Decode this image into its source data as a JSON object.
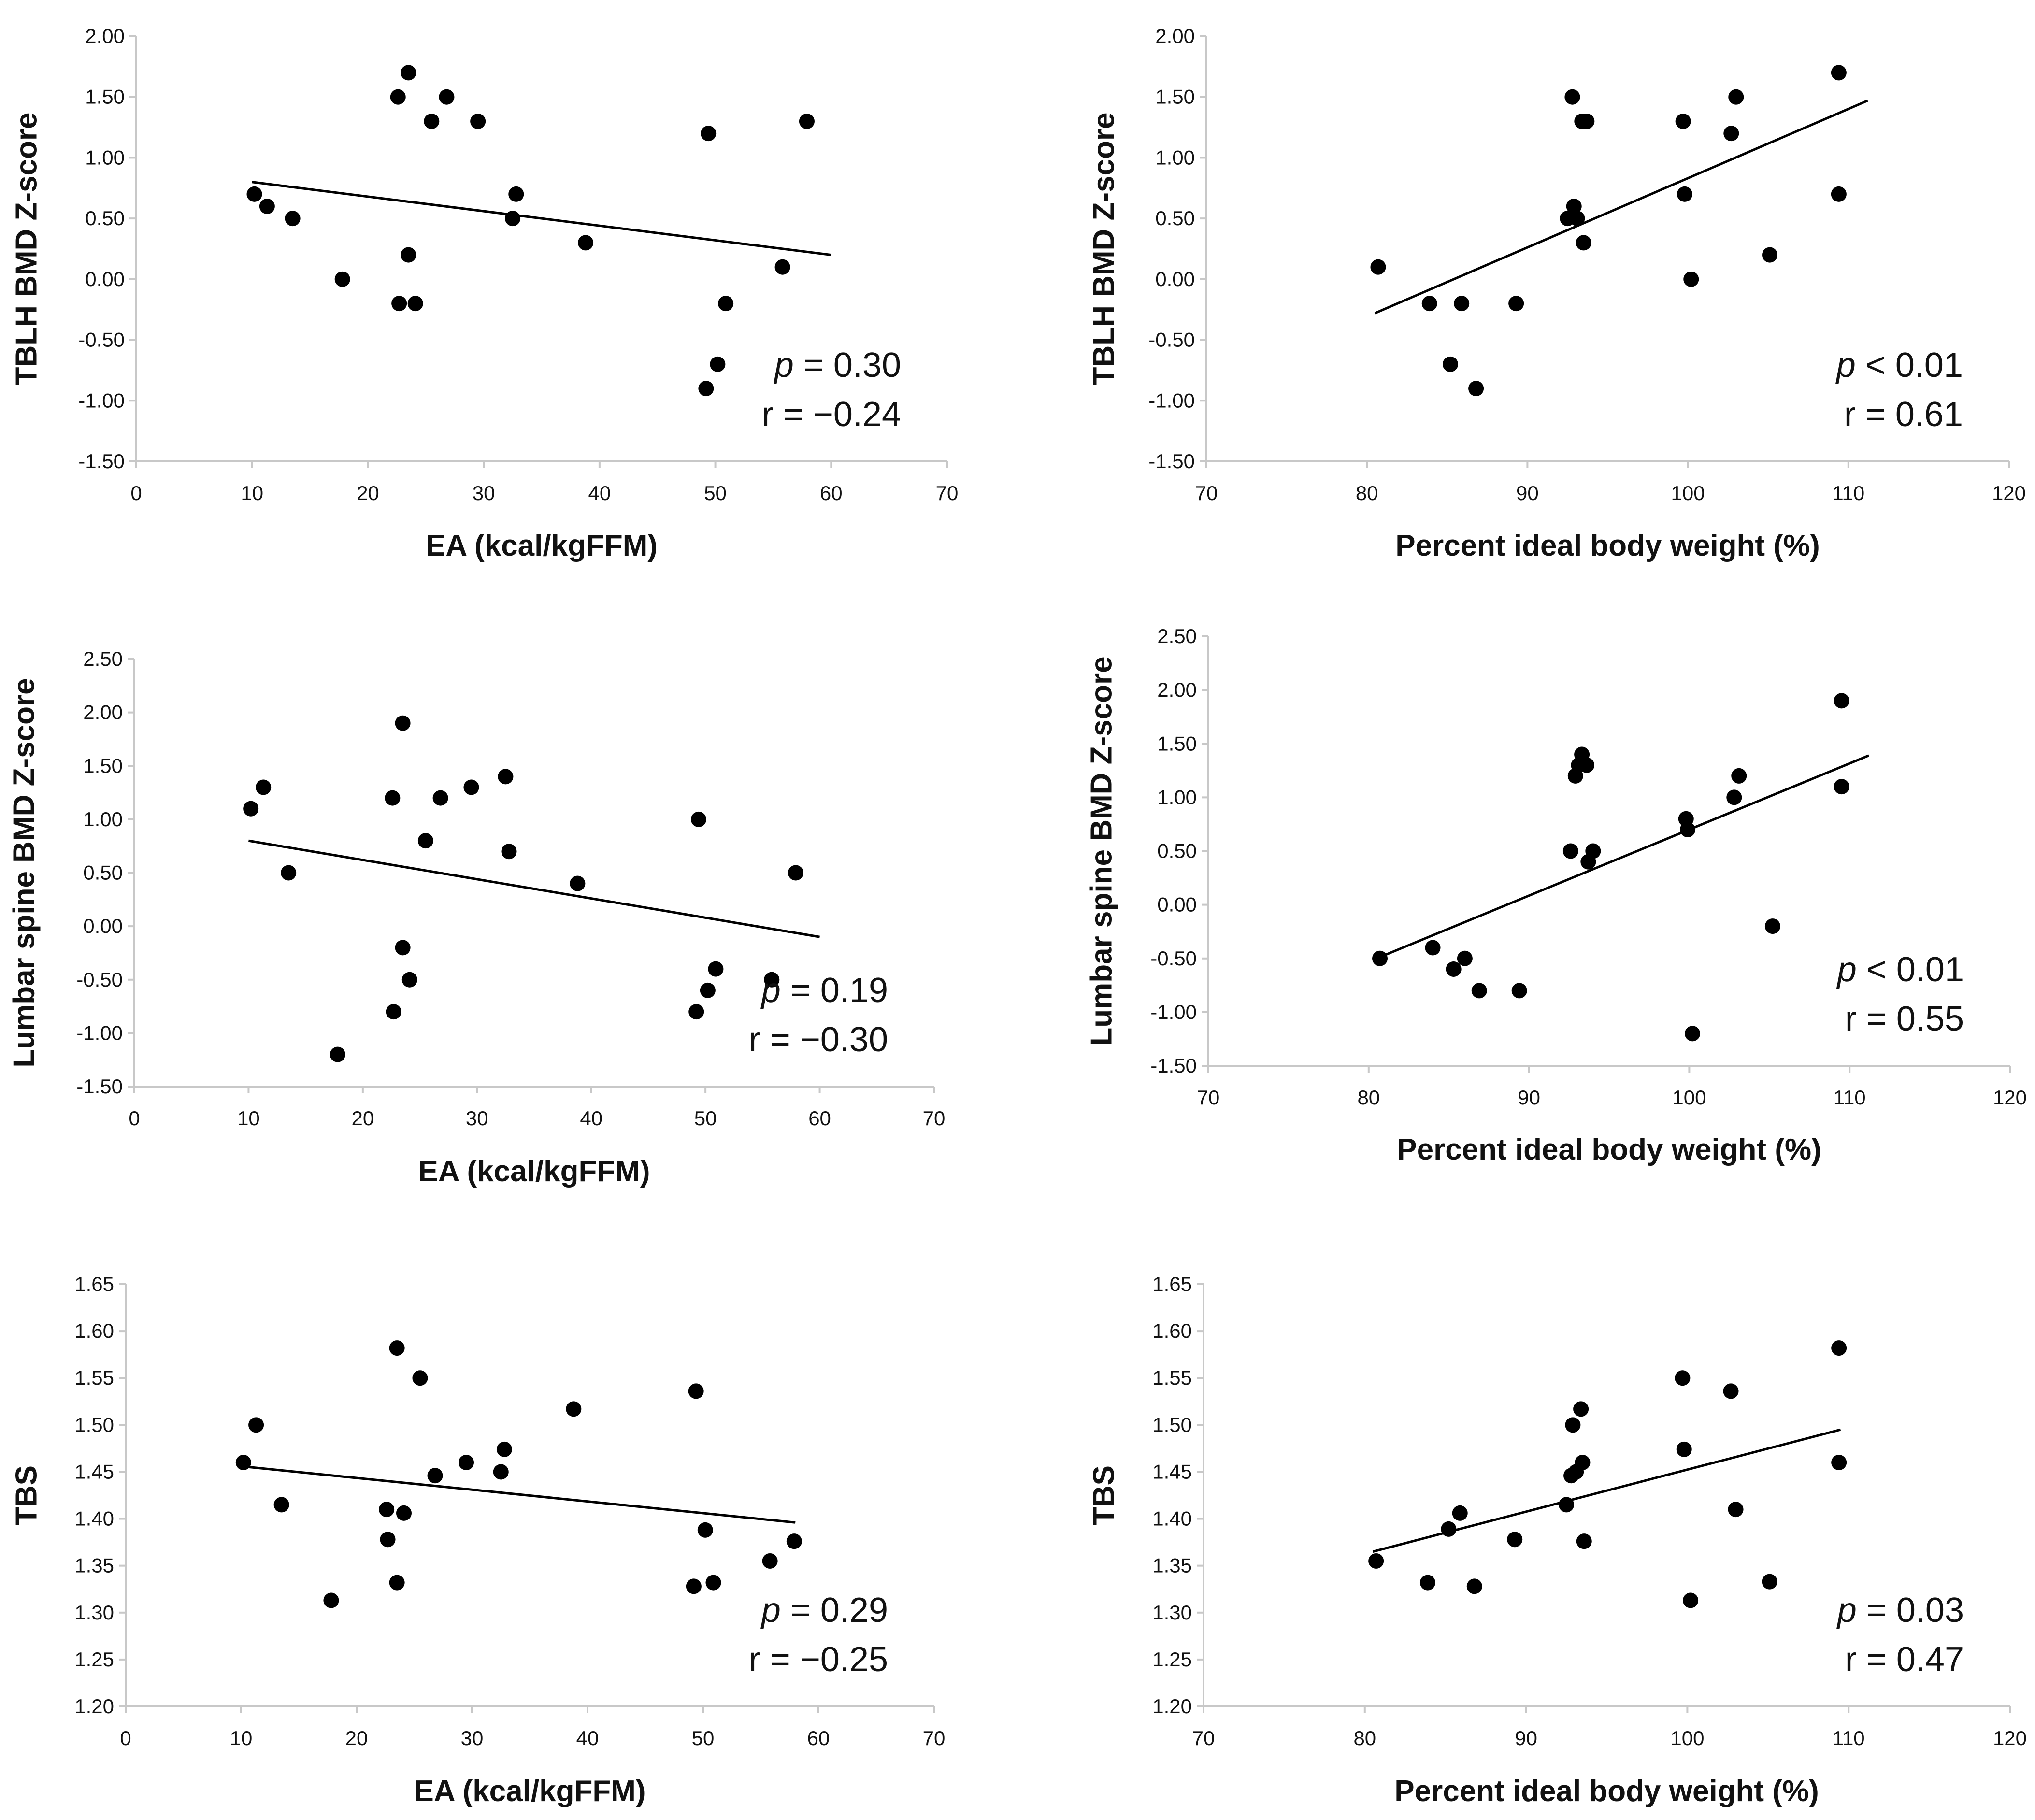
{
  "colors": {
    "axis": "#c8c8c8",
    "marker": "#000000",
    "trendline": "#000000",
    "text": "#111111"
  },
  "chart_data": [
    {
      "type": "scatter",
      "panel": "top-left",
      "title": "",
      "xlabel": "EA (kcal/kgFFM)",
      "ylabel": "TBLH BMD Z-score",
      "xlim": [
        0,
        70
      ],
      "ylim": [
        -1.5,
        2.0
      ],
      "xticks": [
        0,
        10,
        20,
        30,
        40,
        50,
        60,
        70
      ],
      "xtick_labels": [
        "0",
        "10",
        "20",
        "30",
        "40",
        "50",
        "60",
        "70"
      ],
      "yticks": [
        2.0,
        1.5,
        1.0,
        0.5,
        0.0,
        -0.5,
        -1.0,
        -1.5
      ],
      "ytick_labels": [
        "2.00",
        "1.50",
        "1.00",
        "0.50",
        "0.00",
        "-0.50",
        "-1.00",
        "-1.50"
      ],
      "points": [
        [
          10.2,
          0.7
        ],
        [
          11.3,
          0.6
        ],
        [
          13.5,
          0.5
        ],
        [
          17.8,
          0.0
        ],
        [
          22.6,
          1.5
        ],
        [
          22.7,
          -0.2
        ],
        [
          23.5,
          1.7
        ],
        [
          23.5,
          0.2
        ],
        [
          24.1,
          -0.2
        ],
        [
          25.5,
          1.3
        ],
        [
          26.8,
          1.5
        ],
        [
          29.5,
          1.3
        ],
        [
          32.5,
          0.5
        ],
        [
          32.8,
          0.7
        ],
        [
          38.8,
          0.3
        ],
        [
          49.2,
          -0.9
        ],
        [
          49.4,
          1.2
        ],
        [
          50.2,
          -0.7
        ],
        [
          50.9,
          -0.2
        ],
        [
          55.8,
          0.1
        ],
        [
          57.9,
          1.3
        ]
      ],
      "trendline": {
        "x": [
          10,
          60
        ],
        "y": [
          0.8,
          0.2
        ]
      },
      "annotation": {
        "p_symbol": "p",
        "p_text": " =  0.30",
        "r_text": "r = −0.24"
      }
    },
    {
      "type": "scatter",
      "panel": "top-right",
      "title": "",
      "xlabel": "Percent ideal body weight (%)",
      "ylabel": "TBLH BMD Z-score",
      "xlim": [
        70,
        120
      ],
      "ylim": [
        -1.5,
        2.0
      ],
      "xticks": [
        70,
        80,
        90,
        100,
        110,
        120
      ],
      "xtick_labels": [
        "70",
        "80",
        "90",
        "100",
        "110",
        "120"
      ],
      "yticks": [
        2.0,
        1.5,
        1.0,
        0.5,
        0.0,
        -0.5,
        -1.0,
        -1.5
      ],
      "ytick_labels": [
        "2.00",
        "1.50",
        "1.00",
        "0.50",
        "0.00",
        "-0.50",
        "-1.00",
        "-1.50"
      ],
      "points": [
        [
          80.7,
          0.1
        ],
        [
          83.9,
          -0.2
        ],
        [
          85.2,
          -0.7
        ],
        [
          85.9,
          -0.2
        ],
        [
          86.8,
          -0.9
        ],
        [
          89.3,
          -0.2
        ],
        [
          92.5,
          0.5
        ],
        [
          92.8,
          1.5
        ],
        [
          92.9,
          0.6
        ],
        [
          93.1,
          0.5
        ],
        [
          93.4,
          1.3
        ],
        [
          93.5,
          0.3
        ],
        [
          93.7,
          1.3
        ],
        [
          99.7,
          1.3
        ],
        [
          99.8,
          0.7
        ],
        [
          100.2,
          0.0
        ],
        [
          102.7,
          1.2
        ],
        [
          103.0,
          1.5
        ],
        [
          105.1,
          0.2
        ],
        [
          109.4,
          1.7
        ],
        [
          109.4,
          0.7
        ]
      ],
      "trendline": {
        "x": [
          80.5,
          111.2
        ],
        "y": [
          -0.28,
          1.47
        ]
      },
      "annotation": {
        "p_symbol": "p",
        "p_text": " < 0.01",
        "r_text": "r = 0.61"
      }
    },
    {
      "type": "scatter",
      "panel": "middle-left",
      "title": "",
      "xlabel": "EA (kcal/kgFFM)",
      "ylabel": "Lumbar spine BMD Z-score",
      "xlim": [
        0,
        70
      ],
      "ylim": [
        -1.5,
        2.5
      ],
      "xticks": [
        0,
        10,
        20,
        30,
        40,
        50,
        60,
        70
      ],
      "xtick_labels": [
        "0",
        "10",
        "20",
        "30",
        "40",
        "50",
        "60",
        "70"
      ],
      "yticks": [
        2.5,
        2.0,
        1.5,
        1.0,
        0.5,
        0.0,
        -0.5,
        -1.0,
        -1.5
      ],
      "ytick_labels": [
        "2.50",
        "2.00",
        "1.50",
        "1.00",
        "0.50",
        "0.00",
        "-0.50",
        "-1.00",
        "-1.50"
      ],
      "points": [
        [
          10.2,
          1.1
        ],
        [
          11.3,
          1.3
        ],
        [
          13.5,
          0.5
        ],
        [
          17.8,
          -1.2
        ],
        [
          22.6,
          1.2
        ],
        [
          22.7,
          -0.8
        ],
        [
          23.5,
          1.9
        ],
        [
          23.5,
          -0.2
        ],
        [
          24.1,
          -0.5
        ],
        [
          25.5,
          0.8
        ],
        [
          26.8,
          1.2
        ],
        [
          29.5,
          1.3
        ],
        [
          32.5,
          1.4
        ],
        [
          32.8,
          0.7
        ],
        [
          38.8,
          0.4
        ],
        [
          49.2,
          -0.8
        ],
        [
          49.4,
          1.0
        ],
        [
          50.2,
          -0.6
        ],
        [
          50.9,
          -0.4
        ],
        [
          55.8,
          -0.5
        ],
        [
          57.9,
          0.5
        ]
      ],
      "trendline": {
        "x": [
          10,
          60
        ],
        "y": [
          0.8,
          -0.1
        ]
      },
      "annotation": {
        "p_symbol": "p",
        "p_text": " =  0.19",
        "r_text": "r = −0.30"
      }
    },
    {
      "type": "scatter",
      "panel": "middle-right",
      "title": "",
      "xlabel": "Percent ideal body weight (%)",
      "ylabel": "Lumbar spine BMD Z-score",
      "xlim": [
        70,
        120
      ],
      "ylim": [
        -1.5,
        2.5
      ],
      "xticks": [
        70,
        80,
        90,
        100,
        110,
        120
      ],
      "xtick_labels": [
        "70",
        "80",
        "90",
        "100",
        "110",
        "120"
      ],
      "yticks": [
        2.5,
        2.0,
        1.5,
        1.0,
        0.5,
        0.0,
        -0.5,
        -1.0,
        -1.5
      ],
      "ytick_labels": [
        "2.50",
        "2.00",
        "1.50",
        "1.00",
        "0.50",
        "0.00",
        "-0.50",
        "-1.00",
        "-1.50"
      ],
      "points": [
        [
          80.7,
          -0.5
        ],
        [
          84.0,
          -0.4
        ],
        [
          85.3,
          -0.6
        ],
        [
          86.0,
          -0.5
        ],
        [
          86.9,
          -0.8
        ],
        [
          89.4,
          -0.8
        ],
        [
          92.6,
          0.5
        ],
        [
          92.9,
          1.2
        ],
        [
          93.1,
          1.3
        ],
        [
          93.3,
          1.4
        ],
        [
          93.6,
          1.3
        ],
        [
          93.7,
          0.4
        ],
        [
          94.0,
          0.5
        ],
        [
          99.8,
          0.8
        ],
        [
          99.9,
          0.7
        ],
        [
          100.2,
          -1.2
        ],
        [
          102.8,
          1.0
        ],
        [
          103.1,
          1.2
        ],
        [
          105.2,
          -0.2
        ],
        [
          109.5,
          1.9
        ],
        [
          109.5,
          1.1
        ]
      ],
      "trendline": {
        "x": [
          80.5,
          111.2
        ],
        "y": [
          -0.5,
          1.39
        ]
      },
      "annotation": {
        "p_symbol": "p",
        "p_text": " < 0.01",
        "r_text": "r = 0.55"
      }
    },
    {
      "type": "scatter",
      "panel": "bottom-left",
      "title": "",
      "xlabel": "EA (kcal/kgFFM)",
      "ylabel": "TBS",
      "xlim": [
        0,
        70
      ],
      "ylim": [
        1.2,
        1.65
      ],
      "xticks": [
        0,
        10,
        20,
        30,
        40,
        50,
        60,
        70
      ],
      "xtick_labels": [
        "0",
        "10",
        "20",
        "30",
        "40",
        "50",
        "60",
        "70"
      ],
      "yticks": [
        1.65,
        1.6,
        1.55,
        1.5,
        1.45,
        1.4,
        1.35,
        1.3,
        1.25,
        1.2
      ],
      "ytick_labels": [
        "1.65",
        "1.60",
        "1.55",
        "1.50",
        "1.45",
        "1.40",
        "1.35",
        "1.30",
        "1.25",
        "1.20"
      ],
      "points": [
        [
          10.2,
          1.46
        ],
        [
          11.3,
          1.5
        ],
        [
          13.5,
          1.415
        ],
        [
          17.8,
          1.313
        ],
        [
          22.6,
          1.41
        ],
        [
          22.7,
          1.378
        ],
        [
          23.5,
          1.582
        ],
        [
          23.5,
          1.332
        ],
        [
          24.1,
          1.406
        ],
        [
          25.5,
          1.55
        ],
        [
          26.8,
          1.446
        ],
        [
          29.5,
          1.46
        ],
        [
          32.5,
          1.45
        ],
        [
          32.8,
          1.474
        ],
        [
          38.8,
          1.517
        ],
        [
          49.2,
          1.328
        ],
        [
          49.4,
          1.536
        ],
        [
          50.2,
          1.388
        ],
        [
          50.9,
          1.332
        ],
        [
          55.8,
          1.355
        ],
        [
          57.9,
          1.376
        ]
      ],
      "trendline": {
        "x": [
          10,
          58
        ],
        "y": [
          1.456,
          1.396
        ]
      },
      "annotation": {
        "p_symbol": "p",
        "p_text": " =  0.29",
        "r_text": "r = −0.25"
      }
    },
    {
      "type": "scatter",
      "panel": "bottom-right",
      "title": "",
      "xlabel": "Percent ideal body weight (%)",
      "ylabel": "TBS",
      "xlim": [
        70,
        120
      ],
      "ylim": [
        1.2,
        1.65
      ],
      "xticks": [
        70,
        80,
        90,
        100,
        110,
        120
      ],
      "xtick_labels": [
        "70",
        "80",
        "90",
        "100",
        "110",
        "120"
      ],
      "yticks": [
        1.65,
        1.6,
        1.55,
        1.5,
        1.45,
        1.4,
        1.35,
        1.3,
        1.25,
        1.2
      ],
      "ytick_labels": [
        "1.65",
        "1.60",
        "1.55",
        "1.50",
        "1.45",
        "1.40",
        "1.35",
        "1.30",
        "1.25",
        "1.20"
      ],
      "points": [
        [
          80.7,
          1.355
        ],
        [
          83.9,
          1.332
        ],
        [
          85.2,
          1.389
        ],
        [
          85.9,
          1.406
        ],
        [
          86.8,
          1.328
        ],
        [
          89.3,
          1.378
        ],
        [
          92.5,
          1.415
        ],
        [
          92.8,
          1.446
        ],
        [
          92.9,
          1.5
        ],
        [
          93.1,
          1.45
        ],
        [
          93.4,
          1.517
        ],
        [
          93.5,
          1.46
        ],
        [
          93.6,
          1.376
        ],
        [
          99.7,
          1.55
        ],
        [
          99.8,
          1.474
        ],
        [
          100.2,
          1.313
        ],
        [
          102.7,
          1.536
        ],
        [
          103.0,
          1.41
        ],
        [
          105.1,
          1.333
        ],
        [
          109.4,
          1.582
        ],
        [
          109.4,
          1.46
        ]
      ],
      "trendline": {
        "x": [
          80.5,
          109.5
        ],
        "y": [
          1.365,
          1.495
        ]
      },
      "annotation": {
        "p_symbol": "p",
        "p_text": " = 0.03",
        "r_text": "r = 0.47"
      }
    }
  ]
}
